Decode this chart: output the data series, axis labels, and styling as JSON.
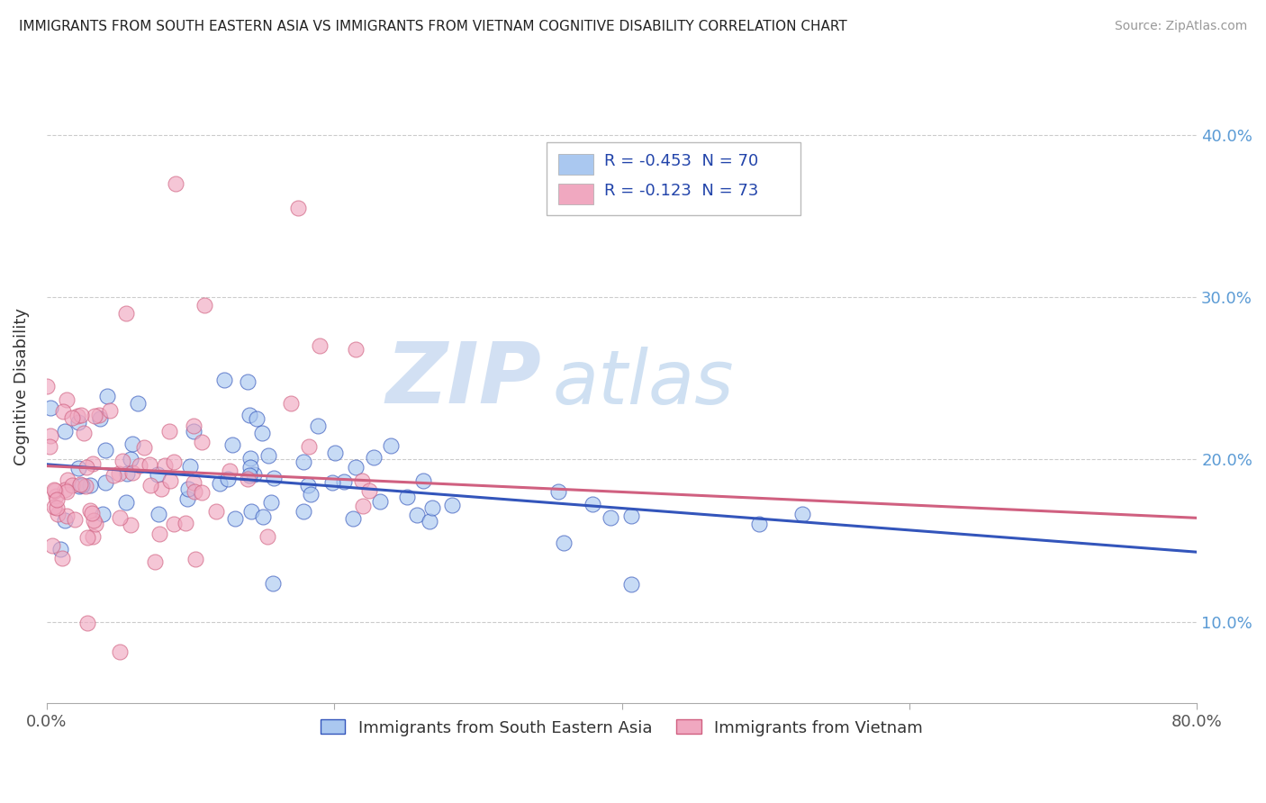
{
  "title": "IMMIGRANTS FROM SOUTH EASTERN ASIA VS IMMIGRANTS FROM VIETNAM COGNITIVE DISABILITY CORRELATION CHART",
  "source": "Source: ZipAtlas.com",
  "ylabel": "Cognitive Disability",
  "yticks": [
    0.1,
    0.2,
    0.3,
    0.4
  ],
  "ytick_labels": [
    "10.0%",
    "20.0%",
    "30.0%",
    "40.0%"
  ],
  "xlim": [
    0.0,
    0.8
  ],
  "ylim": [
    0.05,
    0.44
  ],
  "legend1_label": "R = -0.453  N = 70",
  "legend2_label": "R = -0.123  N = 73",
  "legend_series1": "Immigrants from South Eastern Asia",
  "legend_series2": "Immigrants from Vietnam",
  "color_blue": "#aac8f0",
  "color_pink": "#f0a8c0",
  "line_color_blue": "#3355bb",
  "line_color_pink": "#d06080",
  "R1": -0.453,
  "N1": 70,
  "R2": -0.123,
  "N2": 73,
  "watermark_zip": "ZIP",
  "watermark_atlas": "atlas",
  "seed": 12
}
